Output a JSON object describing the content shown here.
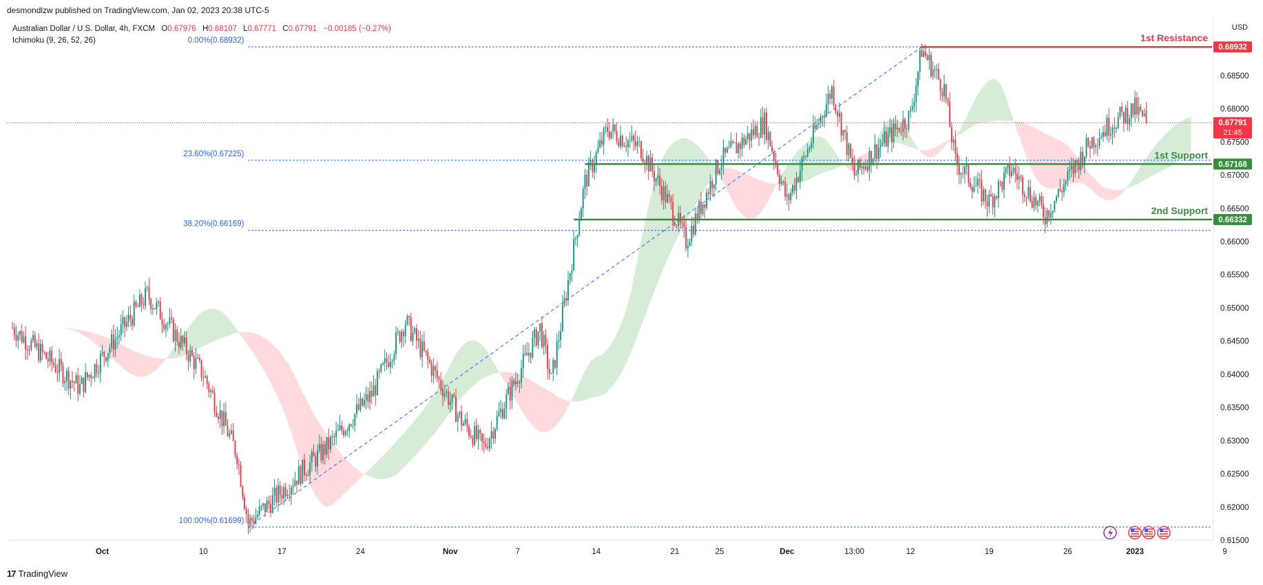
{
  "header": {
    "publisher": "desmondlzw published on TradingView.com, Jan 02, 2023 20:38 UTC-5",
    "symbol": "Australian Dollar / U.S. Dollar, 4h, FXCM",
    "ohlc": {
      "o_label": "O",
      "o": "0.67976",
      "h_label": "H",
      "h": "0.68107",
      "l_label": "L",
      "l": "0.67771",
      "c_label": "C",
      "c": "0.67791",
      "change": "−0.00185 (−0.27%)"
    },
    "indicator": "Ichimoku (9, 26, 52, 26)",
    "currency": "USD"
  },
  "footer": {
    "logo": "17",
    "brand": "TradingView"
  },
  "colors": {
    "up": "#089981",
    "down": "#f23645",
    "resistance": "#f23645",
    "support": "#388e3c",
    "fib": "#2962ff",
    "cloud_up": "#c8e6c9",
    "cloud_down": "#ffcdd2"
  },
  "chart_data": {
    "type": "candlestick",
    "ylim": [
      0.615,
      0.691
    ],
    "y_ticks": [
      "0.68500",
      "0.68000",
      "0.67500",
      "0.67000",
      "0.66500",
      "0.66000",
      "0.65500",
      "0.65000",
      "0.64500",
      "0.64000",
      "0.63500",
      "0.63000",
      "0.62500",
      "0.62000",
      "0.61500"
    ],
    "x_ticks": [
      "Oct",
      "10",
      "17",
      "24",
      "Nov",
      "7",
      "14",
      "21",
      "25",
      "Dec",
      "13:00",
      "12",
      "19",
      "26",
      "2023",
      "9"
    ],
    "fib_levels": [
      {
        "label": "0.00%(0.68932)",
        "value": 0.68932
      },
      {
        "label": "23.60%(0.67225)",
        "value": 0.67225
      },
      {
        "label": "38.20%(0.66169)",
        "value": 0.66169
      },
      {
        "label": "100.00%(0.61699)",
        "value": 0.61699
      }
    ],
    "levels": [
      {
        "name": "1st Resistance",
        "value": 0.68932,
        "label": "0.68932",
        "color": "#f23645",
        "start_date": "Dec 13"
      },
      {
        "name": "1st Support",
        "value": 0.67168,
        "label": "0.67168",
        "color": "#388e3c",
        "start_date": "Nov 13"
      },
      {
        "name": "2nd Support",
        "value": 0.66332,
        "label": "0.66332",
        "color": "#388e3c",
        "start_date": "Nov 12"
      }
    ],
    "current_price": {
      "value": 0.67791,
      "label": "0.67791",
      "countdown": "21:45"
    },
    "price_anchors": [
      [
        "Sep 23",
        0.647
      ],
      [
        "Sep 29",
        0.638
      ],
      [
        "Oct 5",
        0.652
      ],
      [
        "Oct 10",
        0.64
      ],
      [
        "Oct 13",
        0.628
      ],
      [
        "Oct 14",
        0.6175
      ],
      [
        "Oct 21",
        0.629
      ],
      [
        "Oct 25",
        0.637
      ],
      [
        "Oct 28",
        0.648
      ],
      [
        "Nov 2",
        0.633
      ],
      [
        "Nov 4",
        0.629
      ],
      [
        "Nov 9",
        0.647
      ],
      [
        "Nov 10",
        0.639
      ],
      [
        "Nov 13",
        0.669
      ],
      [
        "Nov 15",
        0.677
      ],
      [
        "Nov 18",
        0.674
      ],
      [
        "Nov 21",
        0.664
      ],
      [
        "Nov 22",
        0.66
      ],
      [
        "Nov 25",
        0.672
      ],
      [
        "Nov 29",
        0.678
      ],
      [
        "Dec 1",
        0.666
      ],
      [
        "Dec 5",
        0.683
      ],
      [
        "Dec 7",
        0.67
      ],
      [
        "Dec 9",
        0.674
      ],
      [
        "Dec 12",
        0.679
      ],
      [
        "Dec 13",
        0.689
      ],
      [
        "Dec 15",
        0.683
      ],
      [
        "Dec 16",
        0.672
      ],
      [
        "Dec 19",
        0.666
      ],
      [
        "Dec 21",
        0.671
      ],
      [
        "Dec 24",
        0.664
      ],
      [
        "Dec 28",
        0.675
      ],
      [
        "Dec 30",
        0.678
      ],
      [
        "Jan 1",
        0.68
      ],
      [
        "Jan 2",
        0.6779
      ]
    ],
    "events_icons": [
      "lightning-icon",
      "us-flag-icon",
      "us-flag-icon",
      "us-flag-icon"
    ]
  }
}
